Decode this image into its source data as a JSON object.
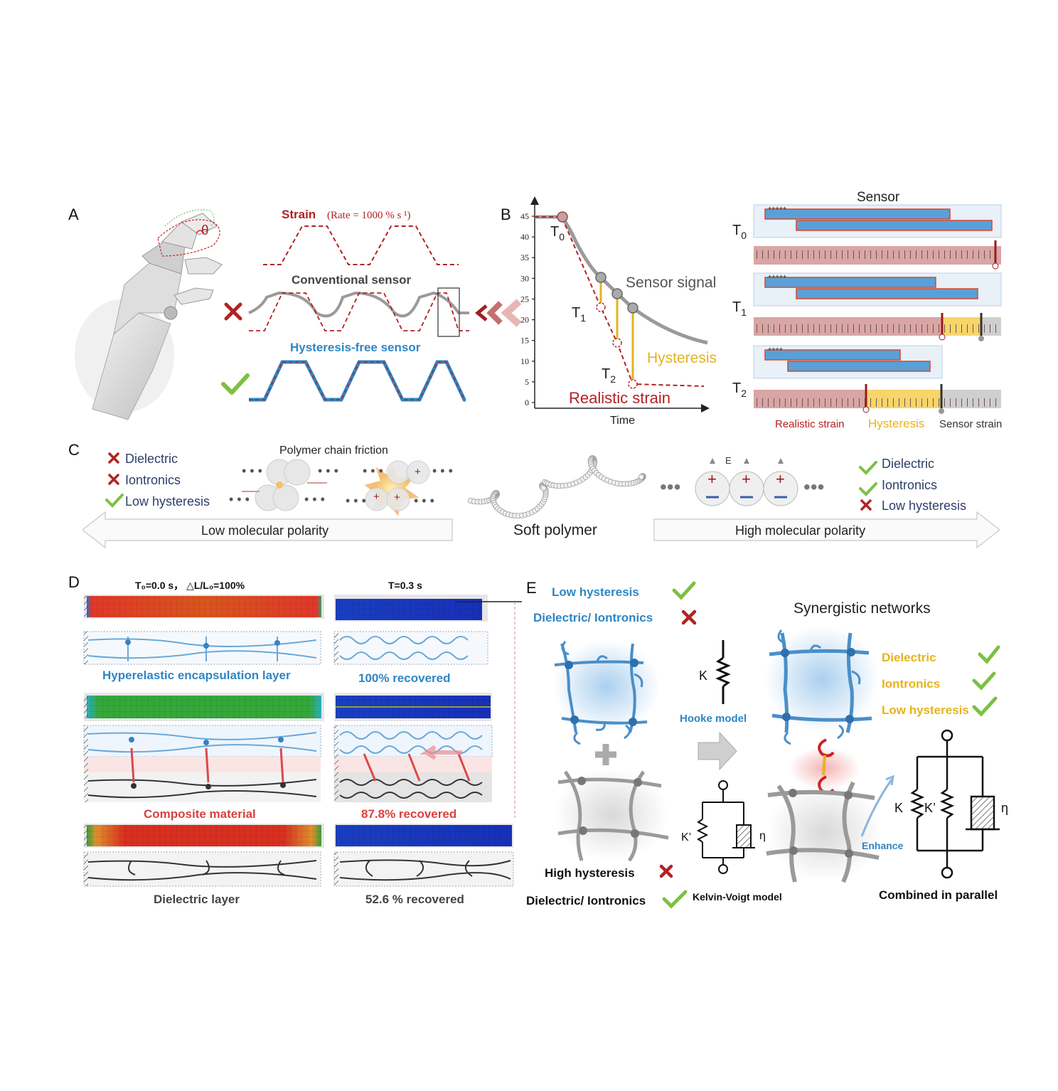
{
  "panels": {
    "A": "A",
    "B": "B",
    "C": "C",
    "D": "D",
    "E": "E"
  },
  "colors": {
    "red": "#b22222",
    "blue": "#2f86c4",
    "gray": "#9a9a9a",
    "orange": "#e6b31e",
    "green": "#7cc142",
    "dark": "#333333",
    "pink": "#d9a5a5"
  },
  "a": {
    "strain_label": "Strain",
    "rate_label": "(Rate = 1000 % s ¹)",
    "conventional_label": "Conventional sensor",
    "hysteresis_free_label": "Hysteresis-free sensor",
    "theta": "θ"
  },
  "b": {
    "y_ticks": [
      "45",
      "40",
      "35",
      "30",
      "25",
      "20",
      "15",
      "10",
      "5",
      "0"
    ],
    "x_label": "Time",
    "sensor_signal": "Sensor signal",
    "hysteresis": "Hysteresis",
    "realistic_strain": "Realistic strain",
    "t0": "T",
    "t0_sub": "0",
    "t1": "T",
    "t1_sub": "1",
    "t2": "T",
    "t2_sub": "2",
    "sensor_title": "Sensor",
    "legend": {
      "realistic": "Realistic strain",
      "hysteresis": "Hysteresis",
      "sensor": "Sensor strain"
    },
    "plus_signs": "+++++",
    "plus_signs_short": "++++"
  },
  "c": {
    "left_items": [
      "Dielectric",
      "Iontronics",
      "Low hysteresis"
    ],
    "right_items": [
      "Dielectric",
      "Iontronics",
      "Low hysteresis"
    ],
    "friction": "Polymer chain friction",
    "soft_polymer": "Soft polymer",
    "low_polarity": "Low molecular polarity",
    "high_polarity": "High molecular polarity",
    "e_label": "E",
    "plus": "+"
  },
  "d": {
    "title_left": "T₀=0.0 s， △L/L₀=100%",
    "title_right": "T=0.3 s",
    "hyperelastic": "Hyperelastic  encapsulation layer",
    "recovered_100": "100% recovered",
    "composite": "Composite material",
    "recovered_87": "87.8% recovered",
    "dielectric": "Dielectric layer",
    "recovered_52": "52.6 % recovered"
  },
  "e": {
    "low_hysteresis": "Low hysteresis",
    "dielectric_iontronics": "Dielectric/ Iontronics",
    "high_hysteresis": "High hysteresis",
    "dielectric_iontronics_2": "Dielectric/ Iontronics",
    "hooke": "Hooke model",
    "kelvin": "Kelvin-Voigt model",
    "synergistic": "Synergistic  networks",
    "right_items": [
      "Dielectric",
      "Iontronics",
      "Low hysteresis"
    ],
    "enhance": "Enhance",
    "combined": "Combined in parallel",
    "k": "K",
    "k_prime": "K’",
    "eta": "η"
  }
}
